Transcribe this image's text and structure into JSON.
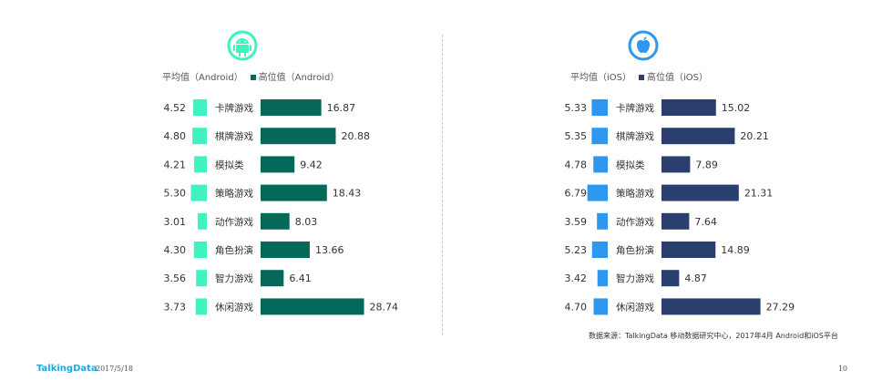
{
  "chart_data": [
    {
      "type": "bar",
      "platform_icon": "android-icon",
      "legend": [
        "平均值（Android）",
        "高位值（Android）"
      ],
      "categories": [
        "卡牌游戏",
        "棋牌游戏",
        "模拟类",
        "策略游戏",
        "动作游戏",
        "角色扮演",
        "智力游戏",
        "休闲游戏"
      ],
      "series": [
        {
          "name": "平均值（Android）",
          "color": "#3ff2c0",
          "values": [
            4.52,
            4.8,
            4.21,
            5.3,
            3.01,
            4.3,
            3.56,
            3.73
          ]
        },
        {
          "name": "高位值（Android）",
          "color": "#05695a",
          "values": [
            16.87,
            20.88,
            9.42,
            18.43,
            8.03,
            13.66,
            6.41,
            28.74
          ]
        }
      ]
    },
    {
      "type": "bar",
      "platform_icon": "apple-icon",
      "legend": [
        "平均值（iOS）",
        "高位值（iOS）"
      ],
      "categories": [
        "卡牌游戏",
        "棋牌游戏",
        "模拟类",
        "策略游戏",
        "动作游戏",
        "角色扮演",
        "智力游戏",
        "休闲游戏"
      ],
      "series": [
        {
          "name": "平均值（iOS）",
          "color": "#2e97f0",
          "values": [
            5.33,
            5.35,
            4.78,
            6.79,
            3.59,
            5.23,
            3.42,
            4.7
          ]
        },
        {
          "name": "高位值（iOS）",
          "color": "#2a3f6e",
          "values": [
            15.02,
            20.21,
            7.89,
            21.31,
            7.64,
            14.89,
            4.87,
            27.29
          ]
        }
      ]
    }
  ],
  "source_note": "数据来源：TalkingData 移动数据研究中心，2017年4月 Android和iOS平台",
  "footer": {
    "brand": "TalkingData",
    "date": "2017/5/18",
    "page_number": "10"
  }
}
